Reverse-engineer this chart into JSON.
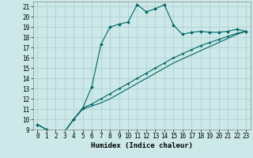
{
  "title": "",
  "xlabel": "Humidex (Indice chaleur)",
  "background_color": "#cce8e8",
  "grid_color": "#aacccc",
  "line_color": "#006666",
  "x_humidex": [
    0,
    1,
    2,
    3,
    4,
    5,
    6,
    7,
    8,
    9,
    10,
    11,
    12,
    13,
    14,
    15,
    16,
    17,
    18,
    19,
    20,
    21,
    22,
    23
  ],
  "curve1_y": [
    9.5,
    9.0,
    8.8,
    8.8,
    10.0,
    11.1,
    13.2,
    17.3,
    19.0,
    19.3,
    19.5,
    21.2,
    20.5,
    20.8,
    21.2,
    19.2,
    18.3,
    18.5,
    18.6,
    18.5,
    18.5,
    18.6,
    18.8,
    18.6
  ],
  "curve2_y": [
    9.5,
    9.0,
    8.8,
    8.8,
    10.0,
    11.1,
    11.5,
    12.0,
    12.5,
    13.0,
    13.5,
    14.0,
    14.5,
    15.0,
    15.5,
    16.0,
    16.4,
    16.8,
    17.2,
    17.5,
    17.8,
    18.1,
    18.4,
    18.6
  ],
  "curve3_y": [
    9.5,
    9.0,
    8.8,
    8.8,
    10.0,
    11.0,
    11.3,
    11.6,
    12.0,
    12.5,
    13.0,
    13.5,
    14.0,
    14.5,
    15.0,
    15.5,
    15.9,
    16.3,
    16.7,
    17.1,
    17.5,
    17.9,
    18.3,
    18.6
  ],
  "ylim": [
    9,
    21.5
  ],
  "xlim": [
    -0.5,
    23.5
  ],
  "yticks": [
    9,
    10,
    11,
    12,
    13,
    14,
    15,
    16,
    17,
    18,
    19,
    20,
    21
  ],
  "xtick_labels": [
    "0",
    "1",
    "2",
    "3",
    "4",
    "5",
    "6",
    "7",
    "8",
    "9",
    "10",
    "11",
    "12",
    "13",
    "14",
    "15",
    "16",
    "17",
    "18",
    "19",
    "20",
    "21",
    "22",
    "23"
  ],
  "tick_fontsize": 5.5,
  "xlabel_fontsize": 6.5
}
